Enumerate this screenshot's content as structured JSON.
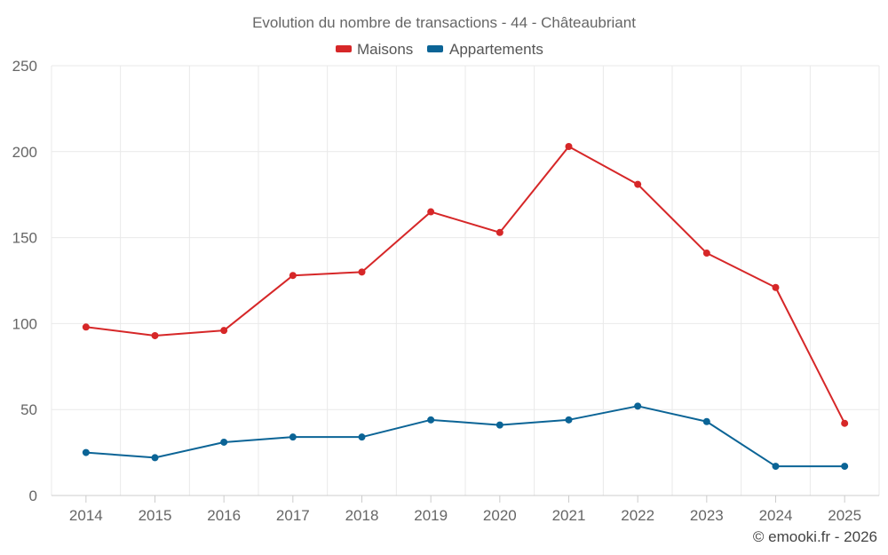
{
  "chart_data": {
    "type": "line",
    "title": "Evolution du nombre de transactions - 44 - Châteaubriant",
    "categories": [
      "2014",
      "2015",
      "2016",
      "2017",
      "2018",
      "2019",
      "2020",
      "2021",
      "2022",
      "2023",
      "2024",
      "2025"
    ],
    "series": [
      {
        "name": "Maisons",
        "color": "#d62728",
        "values": [
          98,
          93,
          96,
          128,
          130,
          165,
          153,
          203,
          181,
          141,
          121,
          42
        ]
      },
      {
        "name": "Appartements",
        "color": "#0b6496",
        "values": [
          25,
          22,
          31,
          34,
          34,
          44,
          41,
          44,
          52,
          43,
          17,
          17
        ]
      }
    ],
    "ylim": [
      0,
      250
    ],
    "yticks": [
      0,
      50,
      100,
      150,
      200,
      250
    ],
    "grid": true,
    "legend_position": "top-center",
    "xlabel": "",
    "ylabel": ""
  },
  "credit": "© emooki.fr - 2026"
}
